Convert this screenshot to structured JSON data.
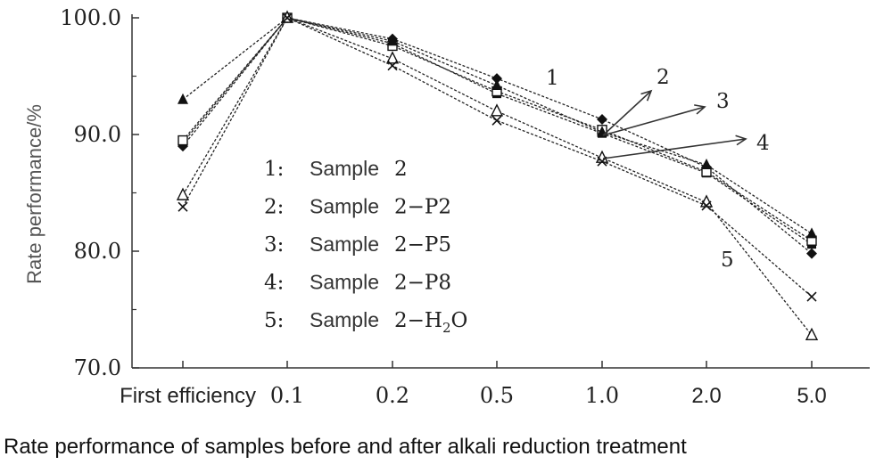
{
  "caption": "Rate performance of samples before and after alkali reduction treatment",
  "chart_data": {
    "type": "line",
    "ylabel": "Rate performance/%",
    "ylim": [
      70,
      100
    ],
    "yticks": [
      "100.0",
      "90.0",
      "80.0",
      "70.0"
    ],
    "categories": [
      "First efficiency",
      "0.1",
      "0.2",
      "0.5",
      "1.0",
      "2.0",
      "5.0"
    ],
    "grid": false,
    "legend_position": "inside-left",
    "series": [
      {
        "label": "1",
        "name": "Sample 2",
        "marker": "filled-diamond",
        "values": [
          89.0,
          100.0,
          98.2,
          94.8,
          91.3,
          87.2,
          79.8
        ]
      },
      {
        "label": "2",
        "name": "Sample 2-P2",
        "marker": "filled-square",
        "values": [
          89.3,
          100.0,
          97.8,
          93.5,
          90.1,
          86.7,
          80.6
        ]
      },
      {
        "label": "3",
        "name": "Sample 2-P5",
        "marker": "open-square",
        "values": [
          89.5,
          100.0,
          97.6,
          93.7,
          90.4,
          86.8,
          80.9
        ]
      },
      {
        "label": "4",
        "name": "Sample 2-P8",
        "marker": "filled-triangle",
        "values": [
          93.0,
          100.0,
          98.0,
          94.2,
          90.2,
          87.4,
          81.5
        ]
      },
      {
        "label": "5",
        "name": "Sample 2-H2O",
        "marker": "open-triangle",
        "values": [
          84.8,
          100.0,
          96.5,
          92.0,
          88.0,
          84.2,
          72.8
        ]
      },
      {
        "label": "",
        "name": "",
        "marker": "cross",
        "values": [
          83.8,
          100.0,
          95.9,
          91.2,
          87.7,
          83.9,
          76.1
        ]
      }
    ],
    "legend": [
      {
        "num": "1:",
        "word": "Sample",
        "code": "2"
      },
      {
        "num": "2:",
        "word": "Sample",
        "code": "2−P2"
      },
      {
        "num": "3:",
        "word": "Sample",
        "code": "2−P5"
      },
      {
        "num": "4:",
        "word": "Sample",
        "code": "2−P8"
      },
      {
        "num": "5:",
        "word": "Sample",
        "code": "2−H2O"
      }
    ],
    "callouts": [
      "1",
      "2",
      "3",
      "4",
      "5"
    ]
  }
}
